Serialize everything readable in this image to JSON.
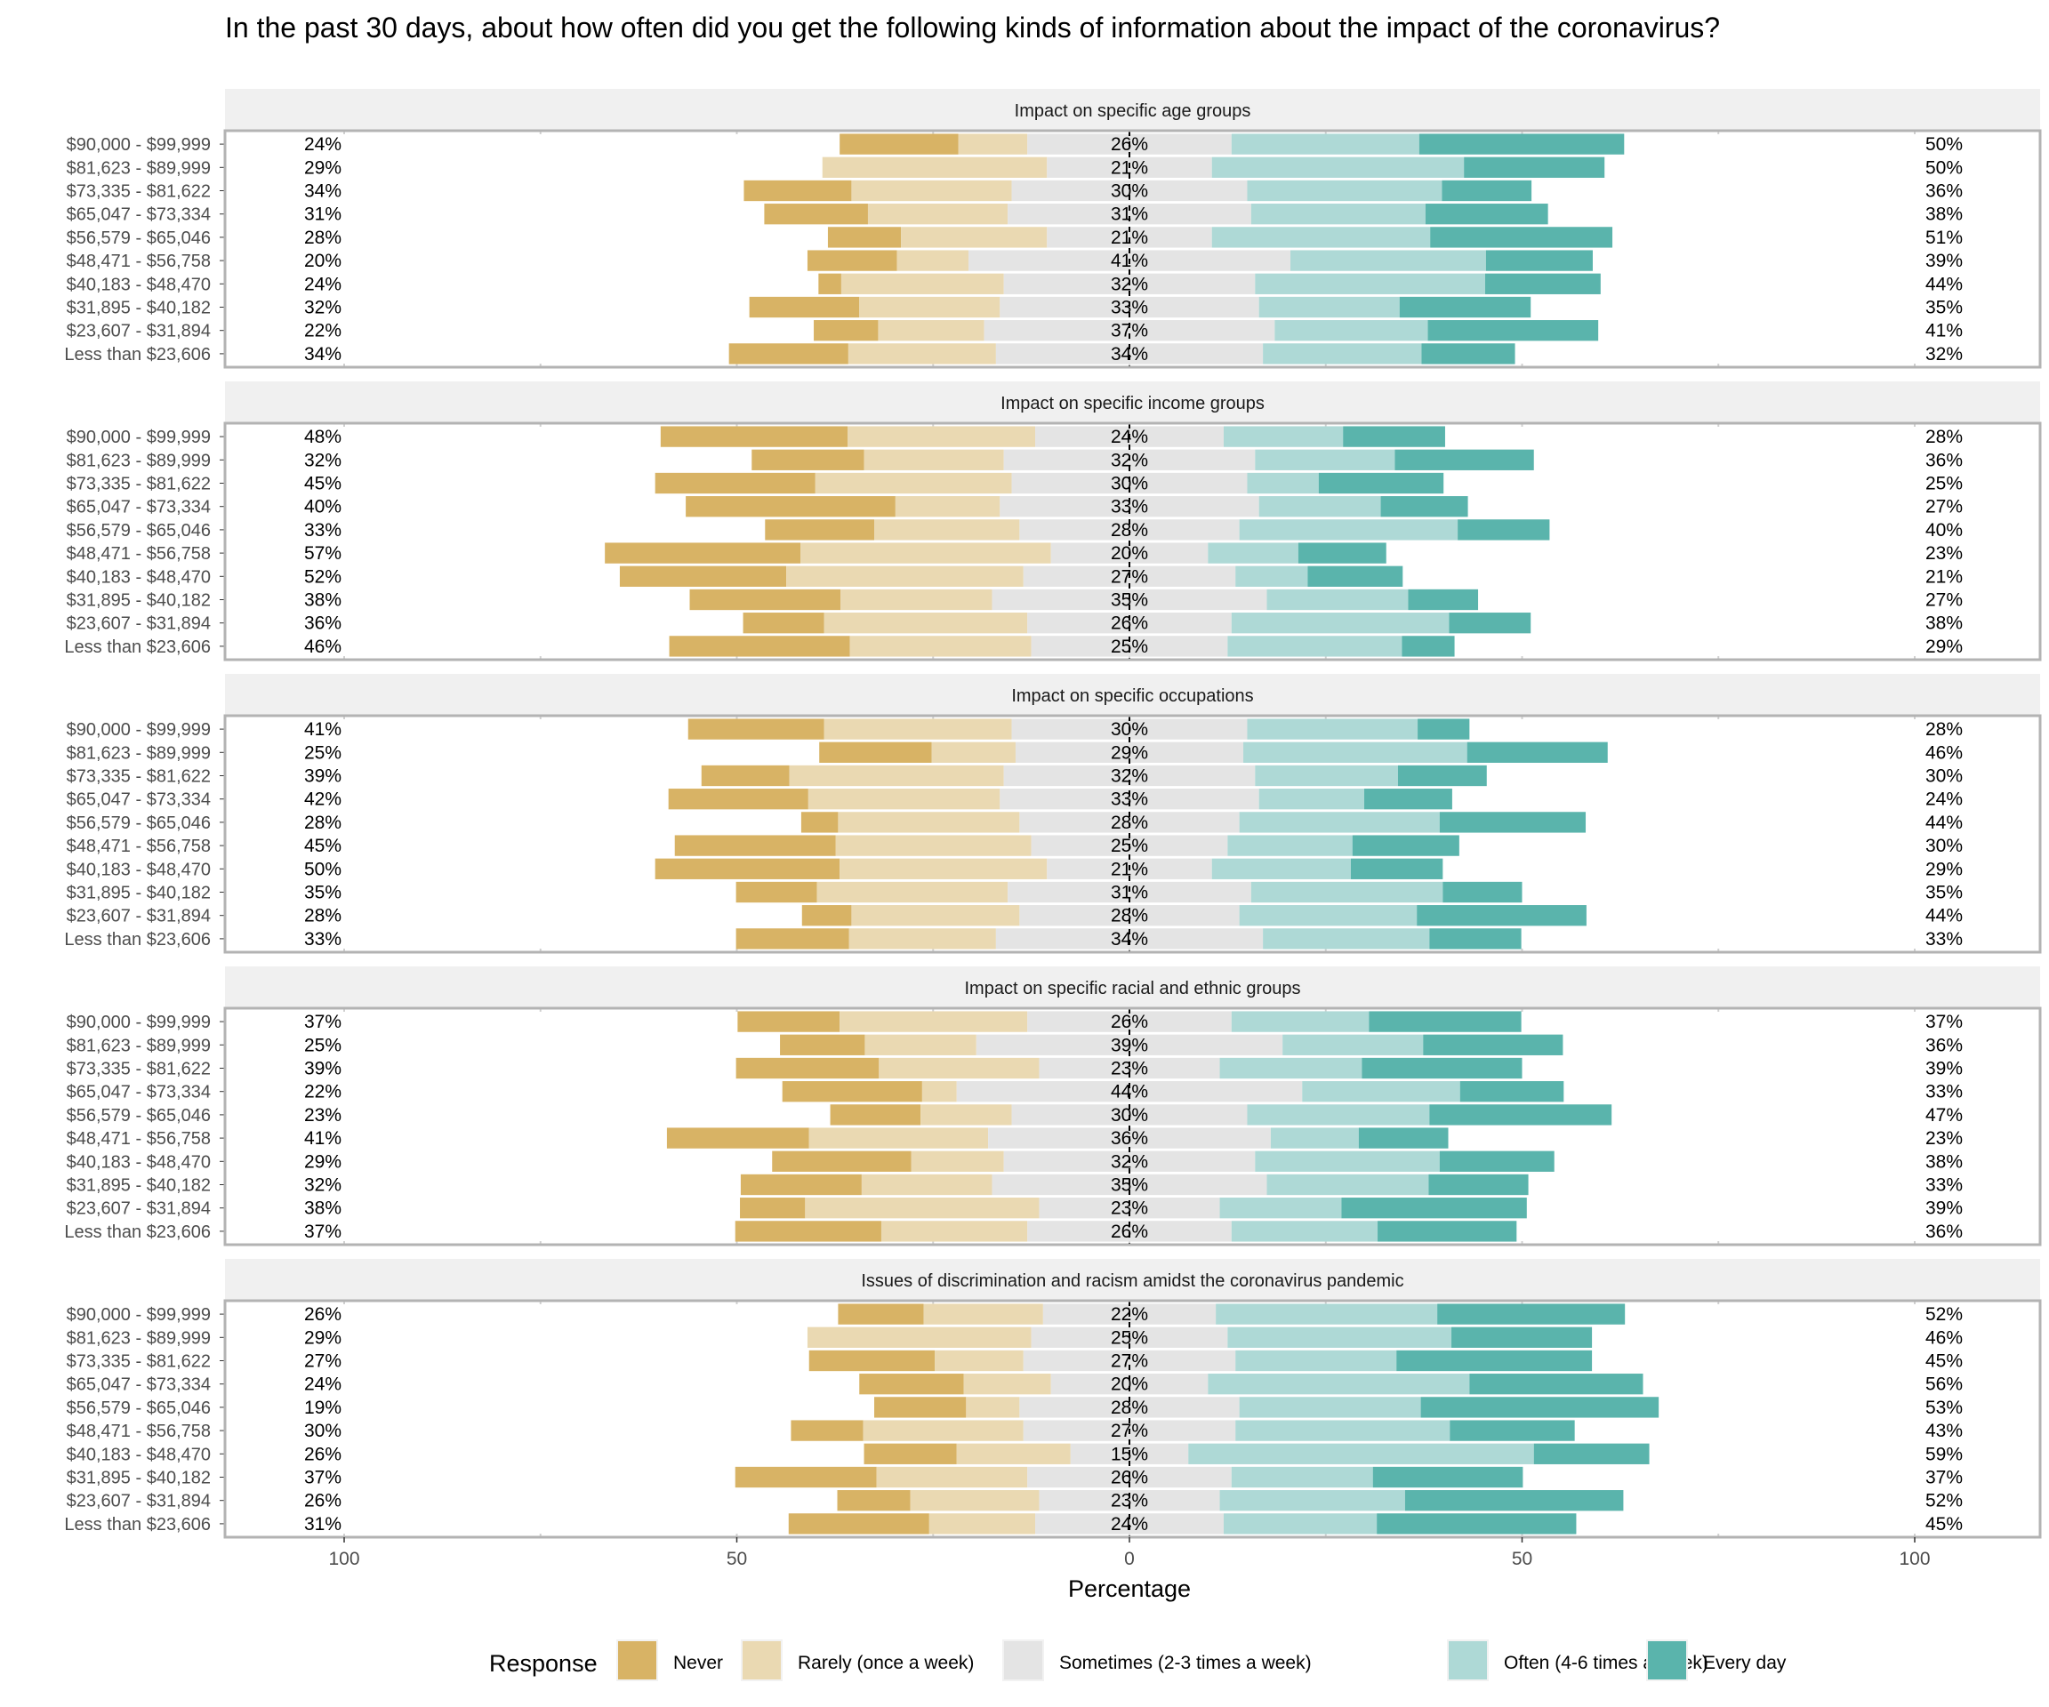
{
  "chart_data": {
    "type": "bar",
    "subtype": "diverging-stacked-horizontal-faceted",
    "title": "In the past 30 days, about how often did you get the following kinds of information about the impact of the coronavirus?",
    "xlabel": "Percentage",
    "ylabel": "",
    "xlim": [
      -100,
      100
    ],
    "xticks": [
      {
        "value": -100,
        "label": "100"
      },
      {
        "value": -50,
        "label": "50"
      },
      {
        "value": 0,
        "label": "0"
      },
      {
        "value": 50,
        "label": "50"
      },
      {
        "value": 100,
        "label": "100"
      }
    ],
    "grid": true,
    "legend": {
      "title": "Response",
      "position": "bottom",
      "entries": [
        {
          "name": "Never",
          "color": "#D8B365"
        },
        {
          "name": "Rarely (once a week)",
          "color": "#EAD9B2"
        },
        {
          "name": "Sometimes (2-3 times a week)",
          "color": "#E4E4E4"
        },
        {
          "name": "Often (4-6 times a week)",
          "color": "#AED9D6"
        },
        {
          "name": "Every day",
          "color": "#5AB4AC"
        }
      ]
    },
    "categories": [
      "$90,000 - $99,999",
      "$81,623 - $89,999",
      "$73,335 - $81,622",
      "$65,047 - $73,334",
      "$56,579 - $65,046",
      "$48,471 - $56,758",
      "$40,183 - $48,470",
      "$31,895 - $40,182",
      "$23,607 - $31,894",
      "Less than $23,606"
    ],
    "series_order": [
      "Never",
      "Rarely (once a week)",
      "Sometimes (2-3 times a week)",
      "Often (4-6 times a week)",
      "Every day"
    ],
    "panels": [
      {
        "title": "Impact on specific age groups",
        "values": [
          [
            15.1,
            8.8,
            26,
            23.9,
            26.1
          ],
          [
            0,
            28.6,
            21,
            32.1,
            17.9
          ],
          [
            13.7,
            20.4,
            30,
            24.8,
            11.4
          ],
          [
            13.2,
            17.8,
            31,
            22.2,
            15.6
          ],
          [
            9.3,
            18.6,
            21,
            27.8,
            23.2
          ],
          [
            11.4,
            9.1,
            41,
            24.9,
            13.6
          ],
          [
            2.9,
            20.7,
            32,
            29.3,
            14.7
          ],
          [
            14.0,
            17.9,
            33,
            17.9,
            16.7
          ],
          [
            8.2,
            13.5,
            37,
            19.5,
            21.7
          ],
          [
            15.2,
            18.8,
            34,
            20.2,
            11.9
          ]
        ],
        "left_labels": [
          "24%",
          "29%",
          "34%",
          "31%",
          "28%",
          "20%",
          "24%",
          "32%",
          "22%",
          "34%"
        ],
        "center_labels": [
          "26%",
          "21%",
          "30%",
          "31%",
          "21%",
          "41%",
          "32%",
          "33%",
          "37%",
          "34%"
        ],
        "right_labels": [
          "50%",
          "50%",
          "36%",
          "38%",
          "51%",
          "39%",
          "44%",
          "35%",
          "41%",
          "32%"
        ]
      },
      {
        "title": "Impact on specific income groups",
        "values": [
          [
            23.8,
            23.9,
            24,
            15.2,
            13.0
          ],
          [
            14.3,
            17.8,
            32,
            17.8,
            17.7
          ],
          [
            20.4,
            25.0,
            30,
            9.1,
            15.9
          ],
          [
            26.7,
            13.3,
            33,
            15.5,
            11.1
          ],
          [
            13.9,
            18.5,
            28,
            27.8,
            11.7
          ],
          [
            24.9,
            31.9,
            20,
            11.5,
            11.2
          ],
          [
            21.2,
            30.2,
            27,
            9.2,
            12.1
          ],
          [
            19.2,
            19.3,
            35,
            18.0,
            8.9
          ],
          [
            10.3,
            25.9,
            26,
            27.7,
            10.4
          ],
          [
            23.0,
            23.1,
            25,
            22.2,
            6.7
          ]
        ],
        "left_labels": [
          "48%",
          "32%",
          "45%",
          "40%",
          "33%",
          "57%",
          "52%",
          "38%",
          "36%",
          "46%"
        ],
        "center_labels": [
          "24%",
          "32%",
          "30%",
          "33%",
          "28%",
          "20%",
          "27%",
          "35%",
          "26%",
          "25%"
        ],
        "right_labels": [
          "28%",
          "36%",
          "25%",
          "27%",
          "40%",
          "23%",
          "21%",
          "27%",
          "38%",
          "29%"
        ]
      },
      {
        "title": "Impact on specific occupations",
        "values": [
          [
            17.3,
            23.9,
            30,
            21.7,
            6.6
          ],
          [
            14.3,
            10.7,
            29,
            28.5,
            17.9
          ],
          [
            11.2,
            27.3,
            32,
            18.2,
            11.3
          ],
          [
            17.8,
            24.4,
            33,
            13.4,
            11.2
          ],
          [
            4.7,
            23.1,
            28,
            25.5,
            18.6
          ],
          [
            20.5,
            24.9,
            25,
            15.9,
            13.6
          ],
          [
            23.5,
            26.4,
            21,
            17.7,
            11.7
          ],
          [
            10.3,
            24.3,
            31,
            24.4,
            10.1
          ],
          [
            6.3,
            21.4,
            28,
            22.6,
            21.6
          ],
          [
            14.4,
            18.7,
            34,
            21.2,
            11.7
          ]
        ],
        "left_labels": [
          "41%",
          "25%",
          "39%",
          "42%",
          "28%",
          "45%",
          "50%",
          "35%",
          "28%",
          "33%"
        ],
        "center_labels": [
          "30%",
          "29%",
          "32%",
          "33%",
          "28%",
          "25%",
          "21%",
          "31%",
          "28%",
          "34%"
        ],
        "right_labels": [
          "28%",
          "46%",
          "30%",
          "24%",
          "44%",
          "30%",
          "29%",
          "35%",
          "44%",
          "33%"
        ]
      },
      {
        "title": "Impact on specific racial and ethnic groups",
        "values": [
          [
            13.0,
            23.9,
            26,
            17.5,
            19.4
          ],
          [
            10.8,
            14.2,
            39,
            17.9,
            17.8
          ],
          [
            18.2,
            20.4,
            23,
            18.1,
            20.4
          ],
          [
            17.8,
            4.4,
            44,
            20.1,
            13.2
          ],
          [
            11.5,
            11.6,
            30,
            23.2,
            23.2
          ],
          [
            18.1,
            22.8,
            36,
            11.2,
            11.4
          ],
          [
            17.7,
            11.8,
            32,
            23.5,
            14.6
          ],
          [
            15.4,
            16.6,
            35,
            20.6,
            12.7
          ],
          [
            8.3,
            29.8,
            23,
            15.5,
            23.6
          ],
          [
            18.6,
            18.6,
            26,
            18.6,
            17.7
          ]
        ],
        "left_labels": [
          "37%",
          "25%",
          "39%",
          "22%",
          "23%",
          "41%",
          "29%",
          "32%",
          "38%",
          "37%"
        ],
        "center_labels": [
          "26%",
          "39%",
          "23%",
          "44%",
          "30%",
          "36%",
          "32%",
          "35%",
          "23%",
          "26%"
        ],
        "right_labels": [
          "37%",
          "36%",
          "39%",
          "33%",
          "47%",
          "23%",
          "38%",
          "33%",
          "39%",
          "36%"
        ]
      },
      {
        "title": "Issues of discrimination and racism amidst the coronavirus pandemic",
        "values": [
          [
            10.9,
            15.2,
            22,
            28.2,
            23.9
          ],
          [
            0,
            28.5,
            25,
            28.5,
            17.9
          ],
          [
            16.0,
            11.3,
            27,
            20.5,
            24.9
          ],
          [
            13.3,
            11.1,
            20,
            33.3,
            22.1
          ],
          [
            11.7,
            6.8,
            28,
            23.1,
            30.3
          ],
          [
            9.2,
            20.4,
            27,
            27.3,
            15.9
          ],
          [
            11.8,
            14.5,
            15,
            44.0,
            14.7
          ],
          [
            18.0,
            19.2,
            26,
            18.0,
            19.1
          ],
          [
            9.3,
            16.4,
            23,
            23.6,
            27.8
          ],
          [
            17.9,
            13.5,
            24,
            19.5,
            25.4
          ]
        ],
        "left_labels": [
          "26%",
          "29%",
          "27%",
          "24%",
          "19%",
          "30%",
          "26%",
          "37%",
          "26%",
          "31%"
        ],
        "center_labels": [
          "22%",
          "25%",
          "27%",
          "20%",
          "28%",
          "27%",
          "15%",
          "26%",
          "23%",
          "24%"
        ],
        "right_labels": [
          "52%",
          "46%",
          "45%",
          "56%",
          "53%",
          "43%",
          "59%",
          "37%",
          "52%",
          "45%"
        ]
      }
    ]
  }
}
